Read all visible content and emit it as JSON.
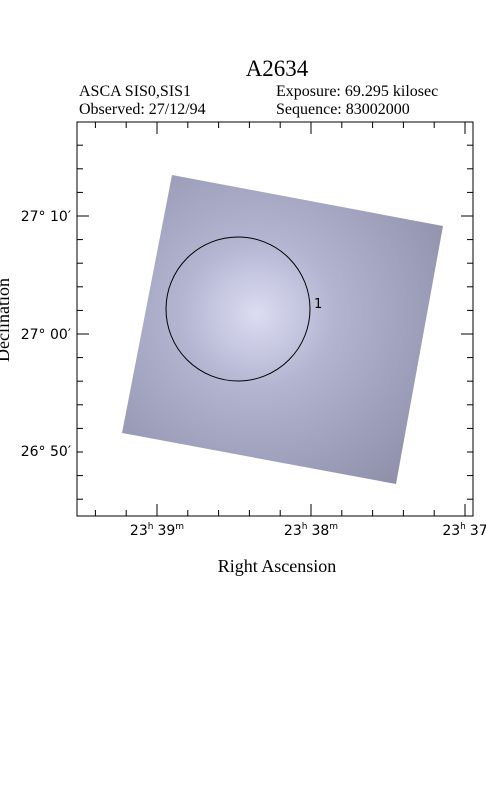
{
  "header": {
    "title": "A2634",
    "instrument": "ASCA SIS0,SIS1",
    "exposure": "Exposure: 69.295 kilosec",
    "observed": "Observed: 27/12/94",
    "sequence": "Sequence: 83002000"
  },
  "axes": {
    "x_label": "Right Ascension",
    "y_label": "Declination",
    "y_ticks": [
      "27° 10′",
      "27° 00′",
      "26° 50′"
    ],
    "x_ticks": [
      {
        "h": "23",
        "hu": "h",
        "m": "39",
        "mu": "m"
      },
      {
        "h": "23",
        "hu": "h",
        "m": "38",
        "mu": "m"
      },
      {
        "h": "23",
        "hu": "h",
        "m": "37"
      }
    ]
  },
  "regions": [
    {
      "label": "1"
    }
  ]
}
